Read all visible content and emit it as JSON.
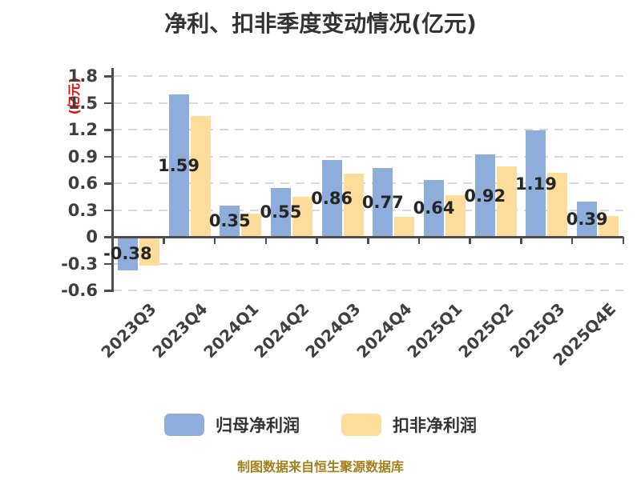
{
  "title": "净利、扣非季度变动情况(亿元)",
  "y_axis_title": "(亿元)",
  "footer_note": "制图数据来自恒生聚源数据库",
  "colors": {
    "bar_blue": "#8EADDB",
    "bar_orange": "#FDDC9C",
    "grid": "#D8D8D8",
    "axis": "#4D4D4D",
    "title_text": "#333333",
    "tick_text": "#3F3F3F",
    "value_text": "#262626",
    "axis_title_red": "#FF0000",
    "footer_text": "#A2801A"
  },
  "legend": {
    "items": [
      {
        "label": "归母净利润",
        "color_key": "bar_blue"
      },
      {
        "label": "扣非净利润",
        "color_key": "bar_orange"
      }
    ]
  },
  "chart_data": {
    "type": "bar",
    "title": "净利、扣非季度变动情况(亿元)",
    "ylabel": "(亿元)",
    "categories": [
      "2023Q3",
      "2023Q4",
      "2024Q1",
      "2024Q2",
      "2024Q3",
      "2024Q4",
      "2025Q1",
      "2025Q2",
      "2025Q3",
      "2025Q4E"
    ],
    "series": [
      {
        "name": "归母净利润",
        "color_key": "bar_blue",
        "values": [
          -0.38,
          1.59,
          0.35,
          0.55,
          0.86,
          0.77,
          0.64,
          0.92,
          1.19,
          0.39
        ],
        "data_labels": [
          "-0.38",
          "1.59",
          "0.35",
          "0.55",
          "0.86",
          "0.77",
          "0.64",
          "0.92",
          "1.19",
          "0.39"
        ]
      },
      {
        "name": "扣非净利润",
        "color_key": "bar_orange",
        "values": [
          -0.32,
          1.35,
          0.26,
          0.45,
          0.71,
          0.22,
          0.47,
          0.79,
          0.72,
          0.23
        ],
        "data_labels": null
      }
    ],
    "ylim": [
      -0.6,
      1.8
    ],
    "yticks": [
      1.8,
      1.5,
      1.2,
      0.9,
      0.6,
      0.3,
      0,
      -0.3,
      -0.6
    ],
    "ytick_labels": [
      "1.8",
      "1.5",
      "1.2",
      "0.9",
      "0.6",
      "0.3",
      "0",
      "-0.3",
      "-0.6"
    ],
    "grid": "dashed-horizontal",
    "legend_position": "bottom"
  }
}
